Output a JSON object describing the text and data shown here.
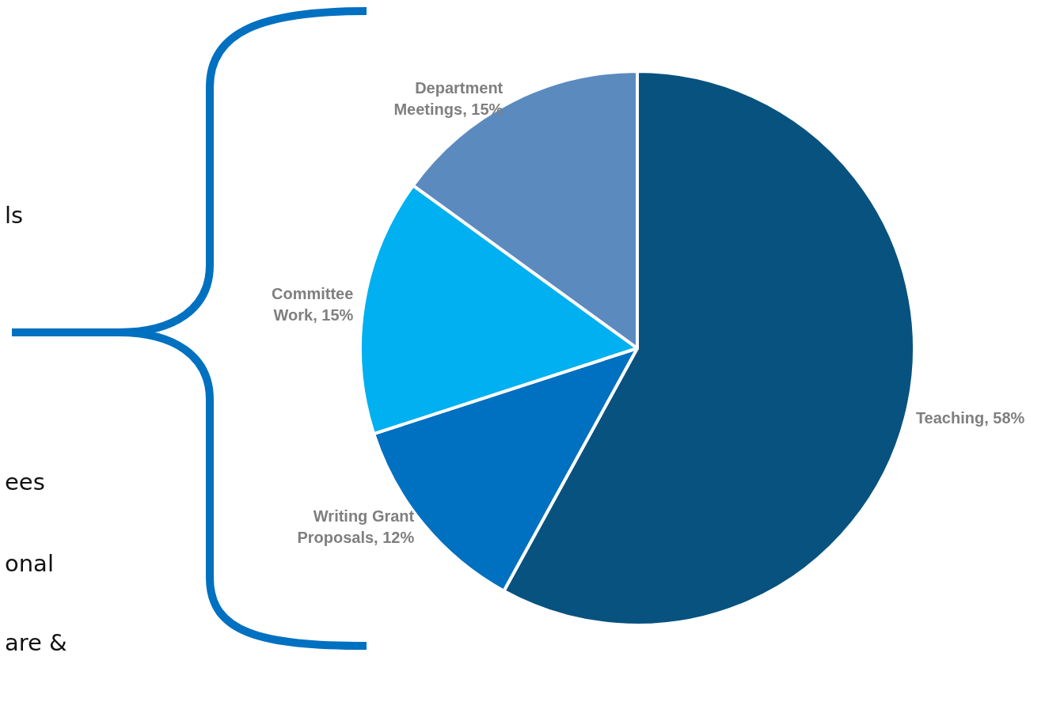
{
  "chart_data": {
    "type": "pie",
    "categories": [
      "Teaching",
      "Writing Grant Proposals",
      "Committee Work",
      "Department Meetings"
    ],
    "values": [
      58,
      12,
      15,
      15
    ],
    "value_labels": [
      "58%",
      "12%",
      "15%",
      "15%"
    ],
    "colors": [
      "#08527f",
      "#0070c0",
      "#00b0f0",
      "#5b8abf"
    ],
    "legend": false,
    "annotations": [
      "ls",
      "ees",
      "onal",
      "are &"
    ]
  }
}
